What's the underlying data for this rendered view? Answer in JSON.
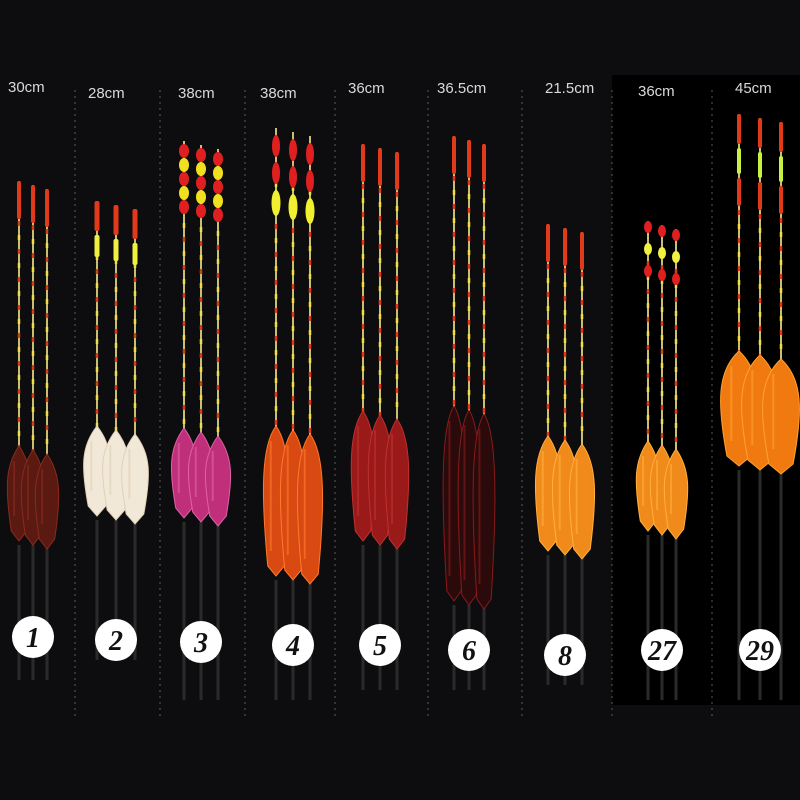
{
  "background": "#0d0d0f",
  "panels": [
    {
      "size": "30cm",
      "number": "1",
      "body_color": "#5a1a12",
      "body_accent": "#8a2a1c",
      "tip": "red-tall",
      "dark_panel": false
    },
    {
      "size": "28cm",
      "number": "2",
      "body_color": "#f2e8d8",
      "body_accent": "#e0d0b8",
      "tip": "red-yellow",
      "dark_panel": false
    },
    {
      "size": "38cm",
      "number": "3",
      "body_color": "#c0307a",
      "body_accent": "#e060a8",
      "tip": "beads",
      "dark_panel": false
    },
    {
      "size": "38cm",
      "number": "4",
      "body_color": "#d84a12",
      "body_accent": "#ff7a2a",
      "tip": "big-beads",
      "dark_panel": false
    },
    {
      "size": "36cm",
      "number": "5",
      "body_color": "#9a1a1a",
      "body_accent": "#c03030",
      "tip": "red-tall",
      "dark_panel": false
    },
    {
      "size": "36.5cm",
      "number": "6",
      "body_color": "#2a0a0a",
      "body_accent": "#8a1a1a",
      "tip": "thin",
      "dark_panel": false
    },
    {
      "size": "21.5cm",
      "number": "8",
      "body_color": "#f08a1a",
      "body_accent": "#ffb040",
      "tip": "thin",
      "dark_panel": false
    },
    {
      "size": "36cm",
      "number": "27",
      "body_color": "#f08a1a",
      "body_accent": "#ffb040",
      "tip": "small-beads",
      "dark_panel": true
    },
    {
      "size": "45cm",
      "number": "29",
      "body_color": "#f07a10",
      "body_accent": "#ffa030",
      "tip": "red-green",
      "dark_panel": true
    }
  ]
}
